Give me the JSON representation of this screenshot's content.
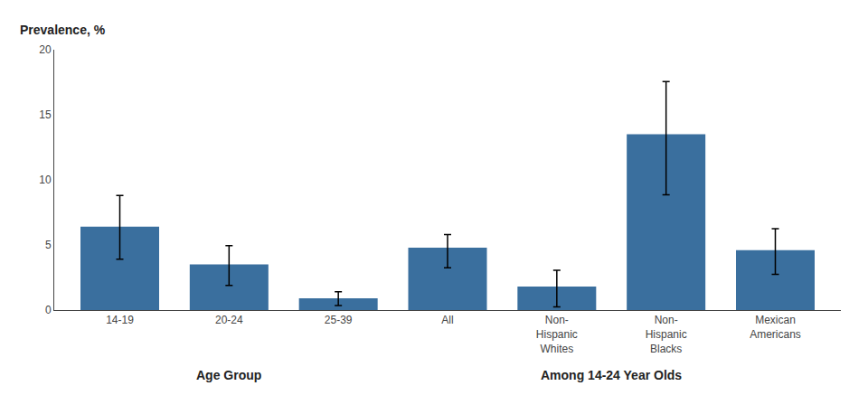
{
  "chart_data": {
    "type": "bar",
    "ylabel": "Prevalence, %",
    "categories": [
      "14-19",
      "20-24",
      "25-39",
      "All",
      "Non-\nHispanic\nWhites",
      "Non-\nHispanic\nBlacks",
      "Mexican\nAmericans"
    ],
    "values": [
      6.4,
      3.5,
      0.9,
      4.8,
      1.8,
      13.5,
      4.6
    ],
    "error_lower": [
      2.5,
      1.6,
      0.55,
      1.55,
      1.55,
      4.65,
      1.85
    ],
    "error_upper": [
      2.4,
      1.45,
      0.5,
      1.0,
      1.25,
      4.05,
      1.65
    ],
    "color": "#3a6f9e",
    "ylim": [
      0,
      20
    ],
    "yticks": [
      0,
      5,
      10,
      15,
      20
    ],
    "grid": false,
    "annotations": [
      {
        "text": "Age Group",
        "categories": [
          "14-19",
          "20-24",
          "25-39"
        ]
      },
      {
        "text": "Among 14-24 Year Olds",
        "categories": [
          "All",
          "Non-\nHispanic\nWhites",
          "Non-\nHispanic\nBlacks",
          "Mexican\nAmericans"
        ]
      }
    ]
  }
}
